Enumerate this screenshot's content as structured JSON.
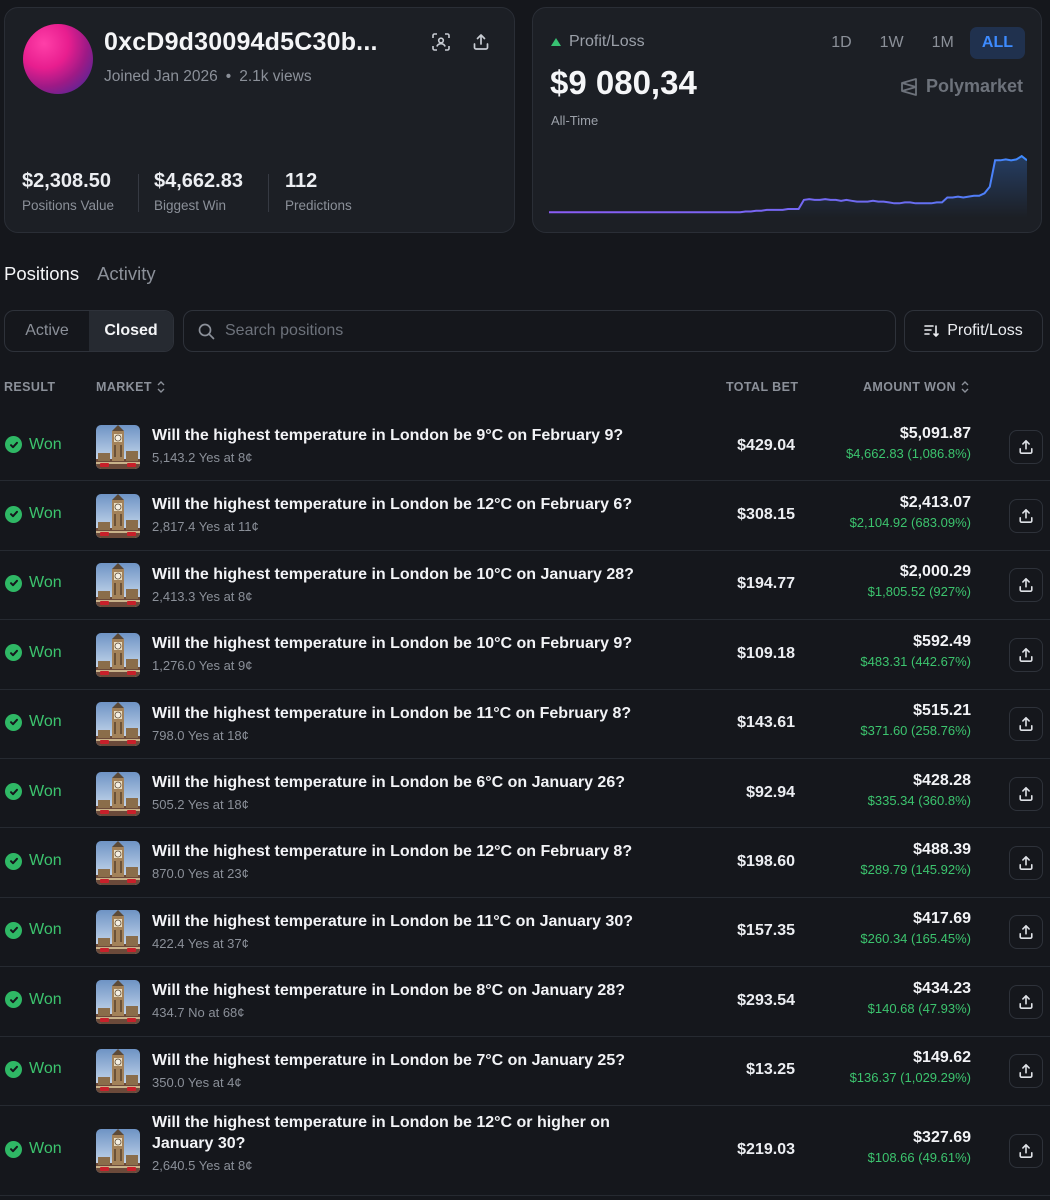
{
  "profile": {
    "name": "0xcD9d30094d5C30b...",
    "joined": "Joined Jan 2026",
    "views": "2.1k views",
    "stats": [
      {
        "value": "$2,308.50",
        "label": "Positions Value"
      },
      {
        "value": "$4,662.83",
        "label": "Biggest Win"
      },
      {
        "value": "112",
        "label": "Predictions"
      }
    ]
  },
  "pnl": {
    "label": "Profit/Loss",
    "value": "$9 080,34",
    "period": "All-Time",
    "ranges": [
      "1D",
      "1W",
      "1M",
      "ALL"
    ],
    "active_range": "ALL",
    "brand": "Polymarket",
    "trend_color": "#7b5cf5",
    "up_color": "#38c172",
    "series": [
      0.02,
      0.02,
      0.02,
      0.02,
      0.02,
      0.02,
      0.02,
      0.02,
      0.02,
      0.02,
      0.02,
      0.02,
      0.02,
      0.02,
      0.02,
      0.02,
      0.02,
      0.02,
      0.02,
      0.02,
      0.02,
      0.02,
      0.02,
      0.02,
      0.02,
      0.02,
      0.02,
      0.02,
      0.02,
      0.02,
      0.02,
      0.02,
      0.02,
      0.02,
      0.02,
      0.02,
      0.02,
      0.03,
      0.03,
      0.04,
      0.04,
      0.05,
      0.05,
      0.05,
      0.05,
      0.06,
      0.06,
      0.06,
      0.17,
      0.18,
      0.17,
      0.17,
      0.18,
      0.17,
      0.17,
      0.16,
      0.17,
      0.16,
      0.15,
      0.15,
      0.15,
      0.16,
      0.15,
      0.15,
      0.14,
      0.13,
      0.13,
      0.14,
      0.14,
      0.13,
      0.13,
      0.13,
      0.13,
      0.14,
      0.14,
      0.2,
      0.2,
      0.21,
      0.2,
      0.21,
      0.22,
      0.22,
      0.25,
      0.33,
      0.65,
      0.65,
      0.66,
      0.65,
      0.66,
      0.7,
      0.65
    ]
  },
  "tabs": [
    "Positions",
    "Activity"
  ],
  "active_tab": "Positions",
  "toggle": [
    "Active",
    "Closed"
  ],
  "active_toggle": "Closed",
  "search": {
    "placeholder": "Search positions"
  },
  "sort": {
    "label": "Profit/Loss"
  },
  "table": {
    "headers": {
      "result": "RESULT",
      "market": "MARKET",
      "total": "TOTAL BET",
      "won": "AMOUNT WON"
    },
    "rows": [
      {
        "result": "Won",
        "title": "Will the highest temperature in London be 9°C on February 9?",
        "sub": "5,143.2 Yes at 8¢",
        "total": "$429.04",
        "won": "$5,091.87",
        "pct": "$4,662.83 (1,086.8%)"
      },
      {
        "result": "Won",
        "title": "Will the highest temperature in London be 12°C on February 6?",
        "sub": "2,817.4 Yes at 11¢",
        "total": "$308.15",
        "won": "$2,413.07",
        "pct": "$2,104.92 (683.09%)"
      },
      {
        "result": "Won",
        "title": "Will the highest temperature in London be 10°C on January 28?",
        "sub": "2,413.3 Yes at 8¢",
        "total": "$194.77",
        "won": "$2,000.29",
        "pct": "$1,805.52 (927%)"
      },
      {
        "result": "Won",
        "title": "Will the highest temperature in London be 10°C on February 9?",
        "sub": "1,276.0 Yes at 9¢",
        "total": "$109.18",
        "won": "$592.49",
        "pct": "$483.31 (442.67%)"
      },
      {
        "result": "Won",
        "title": "Will the highest temperature in London be 11°C on February 8?",
        "sub": "798.0 Yes at 18¢",
        "total": "$143.61",
        "won": "$515.21",
        "pct": "$371.60 (258.76%)"
      },
      {
        "result": "Won",
        "title": "Will the highest temperature in London be 6°C on January 26?",
        "sub": "505.2 Yes at 18¢",
        "total": "$92.94",
        "won": "$428.28",
        "pct": "$335.34 (360.8%)"
      },
      {
        "result": "Won",
        "title": "Will the highest temperature in London be 12°C on February 8?",
        "sub": "870.0 Yes at 23¢",
        "total": "$198.60",
        "won": "$488.39",
        "pct": "$289.79 (145.92%)"
      },
      {
        "result": "Won",
        "title": "Will the highest temperature in London be 11°C on January 30?",
        "sub": "422.4 Yes at 37¢",
        "total": "$157.35",
        "won": "$417.69",
        "pct": "$260.34 (165.45%)"
      },
      {
        "result": "Won",
        "title": "Will the highest temperature in London be 8°C on January 28?",
        "sub": "434.7 No at 68¢",
        "total": "$293.54",
        "won": "$434.23",
        "pct": "$140.68 (47.93%)"
      },
      {
        "result": "Won",
        "title": "Will the highest temperature in London be 7°C on January 25?",
        "sub": "350.0 Yes at 4¢",
        "total": "$13.25",
        "won": "$149.62",
        "pct": "$136.37 (1,029.29%)"
      },
      {
        "result": "Won",
        "title": "Will the highest temperature in London be 12°C or higher on January 30?",
        "sub": "2,640.5 Yes at 8¢",
        "total": "$219.03",
        "won": "$327.69",
        "pct": "$108.66 (49.61%)"
      }
    ]
  }
}
